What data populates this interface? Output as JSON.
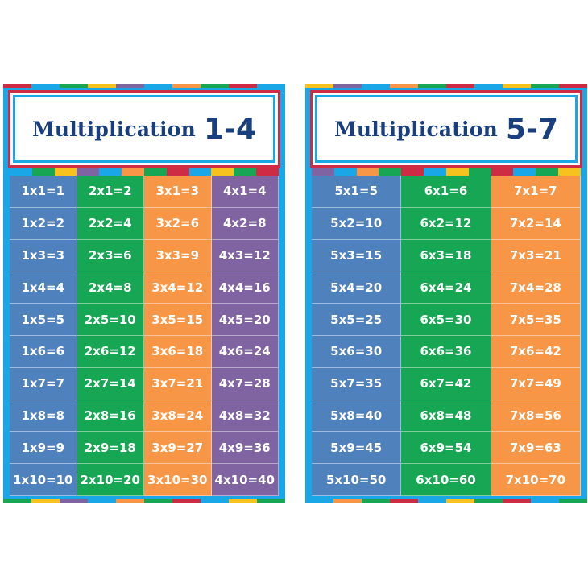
{
  "posters": [
    {
      "title": "Multiplication",
      "range": "1-4",
      "columns": [
        {
          "color": "#4f81bd",
          "facts": [
            "1x1=1",
            "1x2=2",
            "1x3=3",
            "1x4=4",
            "1x5=5",
            "1x6=6",
            "1x7=7",
            "1x8=8",
            "1x9=9",
            "1x10=10"
          ]
        },
        {
          "color": "#17a653",
          "facts": [
            "2x1=2",
            "2x2=4",
            "2x3=6",
            "2x4=8",
            "2x5=10",
            "2x6=12",
            "2x7=14",
            "2x8=16",
            "2x9=18",
            "2x10=20"
          ]
        },
        {
          "color": "#f79646",
          "facts": [
            "3x1=3",
            "3x2=6",
            "3x3=9",
            "3x4=12",
            "3x5=15",
            "3x6=18",
            "3x7=21",
            "3x8=24",
            "3x9=27",
            "3x10=30"
          ]
        },
        {
          "color": "#8064a2",
          "facts": [
            "4x1=4",
            "4x2=8",
            "4x3=12",
            "4x4=16",
            "4x5=20",
            "4x6=24",
            "4x7=28",
            "4x8=32",
            "4x9=36",
            "4x10=40"
          ]
        }
      ]
    },
    {
      "title": "Multiplication",
      "range": "5-7",
      "columns": [
        {
          "color": "#4f81bd",
          "facts": [
            "5x1=5",
            "5x2=10",
            "5x3=15",
            "5x4=20",
            "5x5=25",
            "5x6=30",
            "5x7=35",
            "5x8=40",
            "5x9=45",
            "5x10=50"
          ]
        },
        {
          "color": "#17a653",
          "facts": [
            "6x1=6",
            "6x2=12",
            "6x3=18",
            "6x4=24",
            "6x5=30",
            "6x6=36",
            "6x7=42",
            "6x8=48",
            "6x9=54",
            "6x10=60"
          ]
        },
        {
          "color": "#f79646",
          "facts": [
            "7x1=7",
            "7x2=14",
            "7x3=21",
            "7x4=28",
            "7x5=35",
            "7x6=42",
            "7x7=49",
            "7x8=56",
            "7x9=63",
            "7x10=70"
          ]
        }
      ]
    }
  ],
  "colors": {
    "frame": "#1aa7e8",
    "title_text": "#1a3f7e",
    "header_border": "#ce2b45"
  }
}
